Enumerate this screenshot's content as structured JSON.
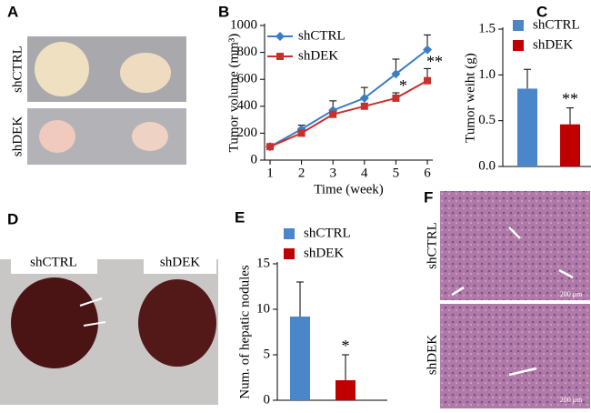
{
  "photos": [
    {
      "panel": "A",
      "labels": [
        "shCTRL",
        "shDEK"
      ]
    },
    {
      "panel": "D",
      "labels": [
        "shCTRL",
        "shDEK"
      ]
    },
    {
      "panel": "F",
      "labels": [
        "shCTRL",
        "shDEK"
      ],
      "scale_labels": [
        "200 μm",
        "200 μm"
      ]
    }
  ],
  "chart_data": [
    {
      "type": "line",
      "panel": "B",
      "x_label": "Time (week)",
      "y_label": "Tumor volume (mm³)",
      "x": [
        1,
        2,
        3,
        4,
        5,
        6
      ],
      "xlim": [
        1,
        6
      ],
      "xticks": [
        1,
        2,
        3,
        4,
        5,
        6
      ],
      "ylim": [
        0,
        1000
      ],
      "yticks": [
        0,
        200,
        400,
        600,
        800,
        1000
      ],
      "series": [
        {
          "name": "shCTRL",
          "color": "#3b7dc4",
          "marker": "diamond",
          "values": [
            100,
            230,
            370,
            460,
            640,
            820
          ],
          "errors": [
            0,
            30,
            70,
            80,
            110,
            110
          ]
        },
        {
          "name": "shDEK",
          "color": "#c9302c",
          "marker": "square",
          "values": [
            100,
            200,
            340,
            400,
            460,
            590
          ],
          "errors": [
            0,
            20,
            20,
            20,
            40,
            90
          ]
        }
      ],
      "annotations": [
        {
          "text": "*",
          "x": 5
        },
        {
          "text": "**",
          "x": 6
        }
      ]
    },
    {
      "type": "bar",
      "panel": "C",
      "y_label": "Tumor weiht (g)",
      "ylim": [
        0,
        1.5
      ],
      "yticks": [
        {
          "value": 0,
          "label": "0.0"
        },
        {
          "value": 0.5,
          "label": "0.5"
        },
        {
          "value": 1,
          "label": "1.0"
        },
        {
          "value": 1.5,
          "label": "1.5"
        }
      ],
      "series": [
        {
          "name": "shCTRL",
          "color": "#4a86c8",
          "values": [
            0.85
          ],
          "errors": [
            0.21
          ]
        },
        {
          "name": "shDEK",
          "color": "#c00000",
          "values": [
            0.46
          ],
          "errors": [
            0.18
          ]
        }
      ],
      "annotations": [
        {
          "text": "**",
          "x": "shDEK"
        }
      ]
    },
    {
      "type": "bar",
      "panel": "E",
      "y_label": "Num. of hepatic nodules",
      "ylim": [
        0,
        15
      ],
      "yticks": [
        0,
        5,
        10,
        15
      ],
      "series": [
        {
          "name": "shCTRL",
          "color": "#4a86c8",
          "values": [
            9.2
          ],
          "errors": [
            3.8
          ]
        },
        {
          "name": "shDEK",
          "color": "#c00000",
          "values": [
            2.2
          ],
          "errors": [
            2.8
          ]
        }
      ],
      "annotations": [
        {
          "text": "*",
          "x": "shDEK"
        }
      ]
    }
  ]
}
